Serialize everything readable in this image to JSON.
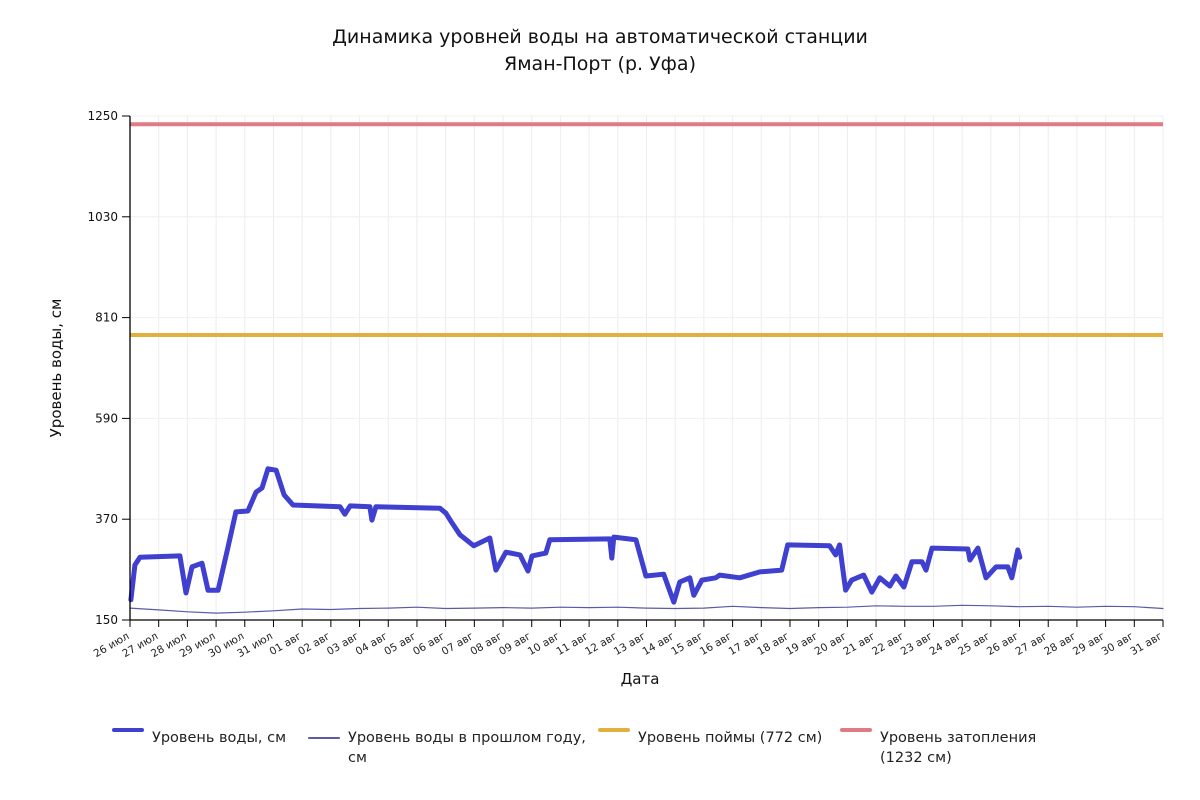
{
  "chart": {
    "title_line1": "Динамика уровней воды на автоматической станции",
    "title_line2": "Яман-Порт (р. Уфа)",
    "xlabel": "Дата",
    "ylabel": "Уровень воды, см"
  },
  "legend": [
    {
      "label": "Уровень воды, см",
      "color": "#3f3fd0"
    },
    {
      "label": "Уровень воды в прошлом году, см",
      "color": "#5a5aa8"
    },
    {
      "label": "Уровень поймы (772 см)",
      "color": "#e3b040"
    },
    {
      "label": "Уровень затопления (1232 см)",
      "color": "#e07a84"
    }
  ],
  "chart_data": {
    "type": "line",
    "title": "Динамика уровней воды на автоматической станции Яман-Порт (р. Уфа)",
    "xlabel": "Дата",
    "ylabel": "Уровень воды, см",
    "ylim": [
      150,
      1250
    ],
    "yticks": [
      150,
      370,
      590,
      810,
      1030,
      1250
    ],
    "xticks": [
      "26 июл",
      "27 июл",
      "28 июл",
      "29 июл",
      "30 июл",
      "31 июл",
      "01 авг",
      "02 авг",
      "03 авг",
      "04 авг",
      "05 авг",
      "06 авг",
      "07 авг",
      "08 авг",
      "09 авг",
      "10 авг",
      "11 авг",
      "12 авг",
      "13 авг",
      "14 авг",
      "15 авг",
      "16 авг",
      "17 авг",
      "18 авг",
      "19 авг",
      "20 авг",
      "21 авг",
      "22 авг",
      "23 авг",
      "24 авг",
      "25 авг",
      "26 авг",
      "27 авг",
      "28 авг",
      "29 авг",
      "30 авг",
      "31 авг"
    ],
    "grid": true,
    "legend_position": "bottom",
    "x_unit": "days since 26 июл",
    "series": [
      {
        "name": "Уровень воды, см",
        "color": "#3f3fd0",
        "points": [
          [
            0.03,
            194
          ],
          [
            0.17,
            270
          ],
          [
            0.35,
            287
          ],
          [
            1.74,
            290
          ],
          [
            1.95,
            209
          ],
          [
            2.16,
            266
          ],
          [
            2.51,
            274
          ],
          [
            2.72,
            215
          ],
          [
            3.07,
            215
          ],
          [
            3.41,
            307
          ],
          [
            3.69,
            386
          ],
          [
            4.11,
            388
          ],
          [
            4.39,
            429
          ],
          [
            4.6,
            438
          ],
          [
            4.81,
            480
          ],
          [
            5.09,
            477
          ],
          [
            5.37,
            423
          ],
          [
            5.68,
            401
          ],
          [
            7.32,
            397
          ],
          [
            7.49,
            381
          ],
          [
            7.67,
            399
          ],
          [
            8.36,
            397
          ],
          [
            8.43,
            368
          ],
          [
            8.57,
            397
          ],
          [
            10.8,
            394
          ],
          [
            11.01,
            383
          ],
          [
            11.22,
            362
          ],
          [
            11.5,
            336
          ],
          [
            11.98,
            312
          ],
          [
            12.54,
            329
          ],
          [
            12.75,
            259
          ],
          [
            13.1,
            298
          ],
          [
            13.59,
            292
          ],
          [
            13.87,
            257
          ],
          [
            14.01,
            290
          ],
          [
            14.49,
            296
          ],
          [
            14.63,
            325
          ],
          [
            16.72,
            327
          ],
          [
            16.79,
            285
          ],
          [
            16.86,
            331
          ],
          [
            17.63,
            325
          ],
          [
            17.98,
            246
          ],
          [
            18.6,
            250
          ],
          [
            18.95,
            189
          ],
          [
            19.16,
            233
          ],
          [
            19.51,
            242
          ],
          [
            19.65,
            204
          ],
          [
            19.93,
            237
          ],
          [
            20.41,
            242
          ],
          [
            20.55,
            248
          ],
          [
            21.25,
            242
          ],
          [
            21.95,
            255
          ],
          [
            22.71,
            259
          ],
          [
            22.92,
            314
          ],
          [
            24.38,
            312
          ],
          [
            24.59,
            292
          ],
          [
            24.73,
            314
          ],
          [
            24.94,
            215
          ],
          [
            25.15,
            237
          ],
          [
            25.57,
            248
          ],
          [
            25.85,
            211
          ],
          [
            26.13,
            242
          ],
          [
            26.48,
            224
          ],
          [
            26.69,
            246
          ],
          [
            26.97,
            222
          ],
          [
            27.25,
            277
          ],
          [
            27.6,
            277
          ],
          [
            27.74,
            259
          ],
          [
            27.95,
            307
          ],
          [
            29.2,
            305
          ],
          [
            29.27,
            281
          ],
          [
            29.55,
            307
          ],
          [
            29.83,
            242
          ],
          [
            30.18,
            266
          ],
          [
            30.59,
            266
          ],
          [
            30.73,
            242
          ],
          [
            30.94,
            303
          ],
          [
            31.01,
            287
          ]
        ]
      },
      {
        "name": "Уровень воды в прошлом году, см",
        "color": "#5a5aa8",
        "approx_range": [
          165,
          185
        ],
        "points": [
          [
            0,
            176
          ],
          [
            1,
            172
          ],
          [
            2,
            168
          ],
          [
            3,
            165
          ],
          [
            4,
            167
          ],
          [
            5,
            170
          ],
          [
            6,
            174
          ],
          [
            7,
            173
          ],
          [
            8,
            175
          ],
          [
            9,
            176
          ],
          [
            10,
            178
          ],
          [
            11,
            175
          ],
          [
            12,
            176
          ],
          [
            13,
            177
          ],
          [
            14,
            176
          ],
          [
            15,
            178
          ],
          [
            16,
            177
          ],
          [
            17,
            178
          ],
          [
            18,
            176
          ],
          [
            19,
            175
          ],
          [
            20,
            176
          ],
          [
            21,
            180
          ],
          [
            22,
            177
          ],
          [
            23,
            175
          ],
          [
            24,
            177
          ],
          [
            25,
            178
          ],
          [
            26,
            181
          ],
          [
            27,
            180
          ],
          [
            28,
            180
          ],
          [
            29,
            182
          ],
          [
            30,
            181
          ],
          [
            31,
            179
          ],
          [
            32,
            180
          ],
          [
            33,
            178
          ],
          [
            34,
            180
          ],
          [
            35,
            179
          ],
          [
            36,
            175
          ]
        ]
      },
      {
        "name": "Уровень поймы (772 см)",
        "color": "#e3b040",
        "constant": 772
      },
      {
        "name": "Уровень затопления (1232 см)",
        "color": "#e07a84",
        "constant": 1232
      }
    ]
  }
}
